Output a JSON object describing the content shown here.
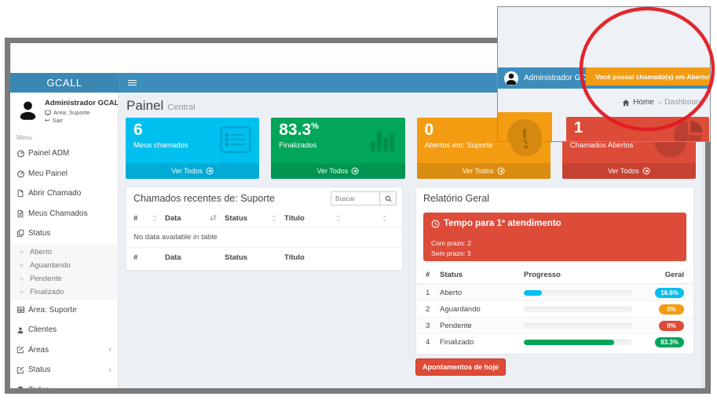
{
  "navbar": {
    "logo": "GCALL"
  },
  "sidebar": {
    "user": {
      "name": "Administrador GCALL",
      "area": "Area: Suporte",
      "logout": "Sair"
    },
    "menu_label": "Menu",
    "items": [
      {
        "label": "Painel ADM",
        "icon": "dashboard-icon"
      },
      {
        "label": "Meu Painel",
        "icon": "dashboard-icon"
      },
      {
        "label": "Abrir Chamado",
        "icon": "file-icon"
      },
      {
        "label": "Meus Chamados",
        "icon": "file-text-icon"
      },
      {
        "label": "Status",
        "icon": "copy-icon"
      }
    ],
    "status_subitems": [
      {
        "label": "Aberto"
      },
      {
        "label": "Aguardando"
      },
      {
        "label": "Pendente"
      },
      {
        "label": "Finalizado"
      }
    ],
    "items_lower": [
      {
        "label": "Área: Suporte",
        "icon": "table-icon"
      },
      {
        "label": "Clientes",
        "icon": "user-icon"
      },
      {
        "label": "Áreas",
        "icon": "edit-icon",
        "chevron": "‹"
      },
      {
        "label": "Status",
        "icon": "edit-icon",
        "chevron": "‹"
      },
      {
        "label": "Todos",
        "icon": "print-icon"
      }
    ]
  },
  "header": {
    "title": "Painel",
    "subtitle": "Central",
    "breadcrumb": {
      "home": "Home",
      "separator": ">",
      "current": "Dashboard"
    }
  },
  "cards": [
    {
      "value": "6",
      "sup": "",
      "label": "Meus chamados",
      "link": "Ver Todos",
      "color": "#00c0ef",
      "icon": "list-icon"
    },
    {
      "value": "83.3",
      "sup": "%",
      "label": "Finalizados",
      "link": "Ver Todos",
      "color": "#00a65a",
      "icon": "bar-chart-icon"
    },
    {
      "value": "0",
      "sup": "",
      "label": "Abertos em: Suporte",
      "link": "Ver Todos",
      "color": "#f39c12",
      "icon": "warning-icon"
    },
    {
      "value": "1",
      "sup": "",
      "label": "Chamados Abertos",
      "link": "Ver Todos",
      "color": "#dd4b39",
      "icon": "pie-chart-icon"
    }
  ],
  "recent_panel": {
    "title": "Chamados recentes de: Suporte",
    "search_placeholder": "Buscar",
    "columns": [
      "#",
      "Data",
      "Status",
      "Título",
      ""
    ],
    "empty_text": "No data available in table",
    "footer_columns": [
      "#",
      "Data",
      "Status",
      "Título"
    ]
  },
  "report_panel": {
    "title": "Relatório Geral",
    "alert": {
      "title": "Tempo para 1º atendimento",
      "line1": "Com prazo: 2",
      "line2": "Sem prazo: 3",
      "color": "#dd4b39"
    },
    "columns": [
      "#",
      "Status",
      "Progresso",
      "Geral"
    ],
    "rows": [
      {
        "num": "1",
        "status": "Aberto",
        "progress": 16.6,
        "badge": "16.6%",
        "color": "#00c0ef"
      },
      {
        "num": "2",
        "status": "Aguardando",
        "progress": 0,
        "badge": "0%",
        "color": "#f39c12"
      },
      {
        "num": "3",
        "status": "Pendente",
        "progress": 0,
        "badge": "0%",
        "color": "#dd4b39"
      },
      {
        "num": "4",
        "status": "Finalizado",
        "progress": 83.3,
        "badge": "83.3%",
        "color": "#00a65a"
      }
    ],
    "button": "Apontamentos de hoje"
  },
  "overlay": {
    "user": "Administrador GCALL",
    "alert": "Você possui chamado(s) em Aberto!",
    "close": "×",
    "breadcrumb": {
      "home": "Home",
      "separator": ">",
      "current": "Dashboard"
    },
    "card_value": "1",
    "annotation_color": "#e01b22"
  }
}
